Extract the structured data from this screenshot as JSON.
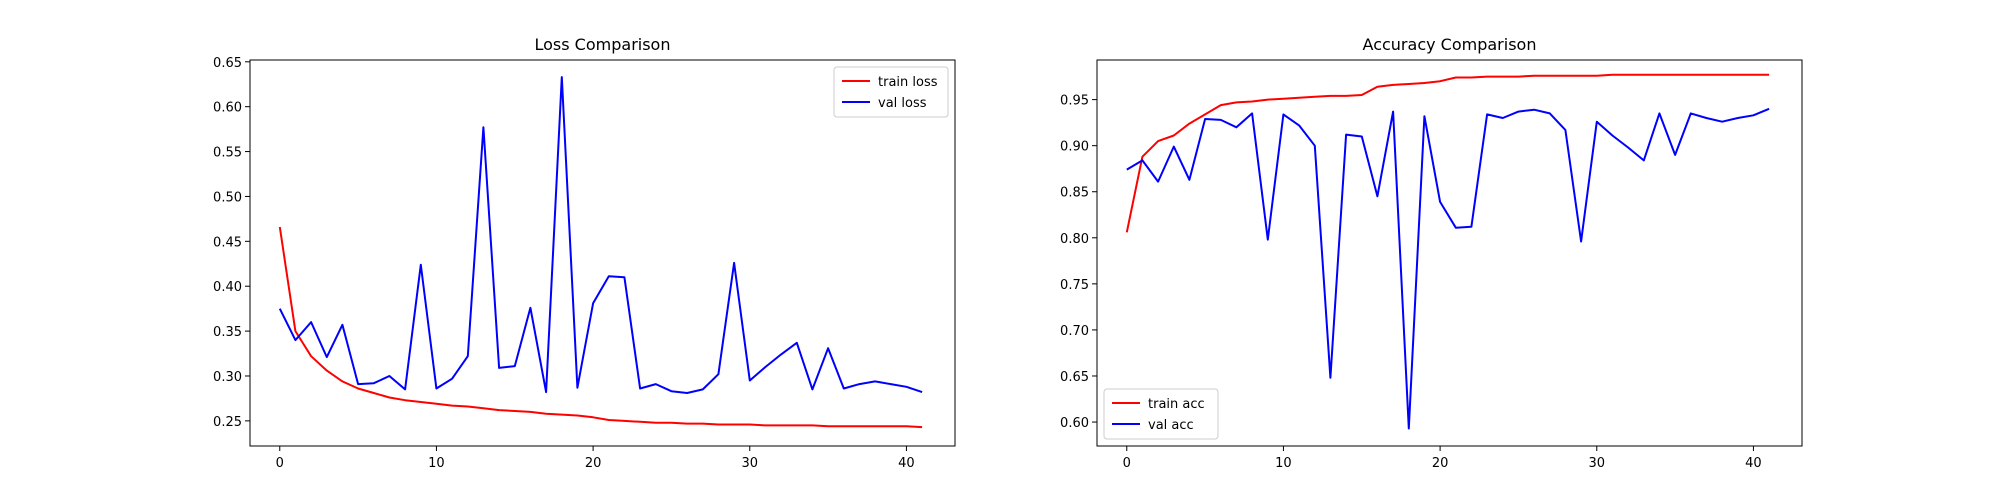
{
  "chart_data": [
    {
      "type": "line",
      "title": "Loss Comparison",
      "xlabel": "",
      "ylabel": "",
      "xlim": [
        -1.9,
        43.1
      ],
      "ylim": [
        0.222,
        0.652
      ],
      "x_ticks": [
        0,
        10,
        20,
        30,
        40
      ],
      "y_ticks": [
        0.25,
        0.3,
        0.35,
        0.4,
        0.45,
        0.5,
        0.55,
        0.6,
        0.65
      ],
      "grid": false,
      "legend": "upper-right",
      "x": [
        0,
        1,
        2,
        3,
        4,
        5,
        6,
        7,
        8,
        9,
        10,
        11,
        12,
        13,
        14,
        15,
        16,
        17,
        18,
        19,
        20,
        21,
        22,
        23,
        24,
        25,
        26,
        27,
        28,
        29,
        30,
        31,
        32,
        33,
        34,
        35,
        36,
        37,
        38,
        39,
        40,
        41
      ],
      "series": [
        {
          "name": "train loss",
          "color": "#ff0000",
          "values": [
            0.466,
            0.35,
            0.322,
            0.306,
            0.294,
            0.286,
            0.281,
            0.276,
            0.273,
            0.271,
            0.269,
            0.267,
            0.266,
            0.264,
            0.262,
            0.261,
            0.26,
            0.258,
            0.257,
            0.256,
            0.254,
            0.251,
            0.25,
            0.249,
            0.248,
            0.248,
            0.247,
            0.247,
            0.246,
            0.246,
            0.246,
            0.245,
            0.245,
            0.245,
            0.245,
            0.244,
            0.244,
            0.244,
            0.244,
            0.244,
            0.244,
            0.243
          ]
        },
        {
          "name": "val loss",
          "color": "#0000ff",
          "values": [
            0.375,
            0.34,
            0.36,
            0.321,
            0.357,
            0.291,
            0.292,
            0.3,
            0.285,
            0.424,
            0.286,
            0.297,
            0.322,
            0.577,
            0.309,
            0.311,
            0.376,
            0.282,
            0.633,
            0.287,
            0.381,
            0.411,
            0.41,
            0.286,
            0.291,
            0.283,
            0.281,
            0.285,
            0.302,
            0.426,
            0.295,
            0.31,
            0.324,
            0.337,
            0.285,
            0.331,
            0.286,
            0.291,
            0.294,
            0.291,
            0.288,
            0.282
          ]
        }
      ]
    },
    {
      "type": "line",
      "title": "Accuracy Comparison",
      "xlabel": "",
      "ylabel": "",
      "xlim": [
        -1.9,
        43.1
      ],
      "ylim": [
        0.574,
        0.993
      ],
      "x_ticks": [
        0,
        10,
        20,
        30,
        40
      ],
      "y_ticks": [
        0.6,
        0.65,
        0.7,
        0.75,
        0.8,
        0.85,
        0.9,
        0.95
      ],
      "grid": false,
      "legend": "lower-left",
      "x": [
        0,
        1,
        2,
        3,
        4,
        5,
        6,
        7,
        8,
        9,
        10,
        11,
        12,
        13,
        14,
        15,
        16,
        17,
        18,
        19,
        20,
        21,
        22,
        23,
        24,
        25,
        26,
        27,
        28,
        29,
        30,
        31,
        32,
        33,
        34,
        35,
        36,
        37,
        38,
        39,
        40,
        41
      ],
      "series": [
        {
          "name": "train acc",
          "color": "#ff0000",
          "values": [
            0.806,
            0.888,
            0.905,
            0.911,
            0.924,
            0.934,
            0.944,
            0.947,
            0.948,
            0.95,
            0.951,
            0.952,
            0.953,
            0.954,
            0.954,
            0.955,
            0.964,
            0.966,
            0.967,
            0.968,
            0.97,
            0.974,
            0.974,
            0.975,
            0.975,
            0.975,
            0.976,
            0.976,
            0.976,
            0.976,
            0.976,
            0.977,
            0.977,
            0.977,
            0.977,
            0.977,
            0.977,
            0.977,
            0.977,
            0.977,
            0.977,
            0.977
          ]
        },
        {
          "name": "val acc",
          "color": "#0000ff",
          "values": [
            0.874,
            0.884,
            0.861,
            0.899,
            0.863,
            0.929,
            0.928,
            0.92,
            0.935,
            0.798,
            0.934,
            0.922,
            0.9,
            0.648,
            0.912,
            0.91,
            0.845,
            0.937,
            0.593,
            0.932,
            0.839,
            0.811,
            0.812,
            0.934,
            0.93,
            0.937,
            0.939,
            0.935,
            0.917,
            0.796,
            0.926,
            0.911,
            0.898,
            0.884,
            0.935,
            0.89,
            0.935,
            0.93,
            0.926,
            0.93,
            0.933,
            0.94
          ]
        }
      ]
    }
  ]
}
